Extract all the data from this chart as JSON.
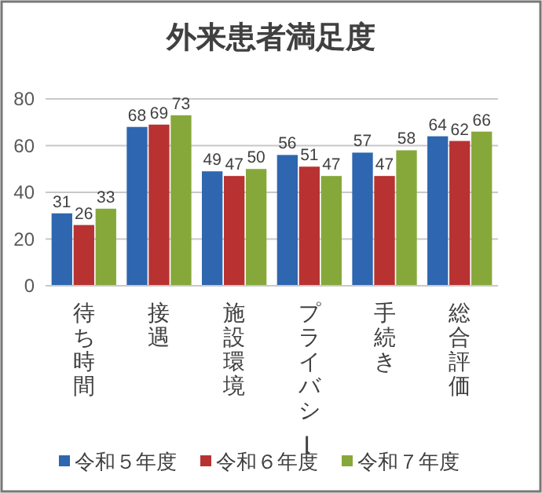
{
  "chart_data": {
    "type": "bar",
    "title": "外来患者満足度",
    "categories": [
      "待ち時間",
      "接遇",
      "施設環境",
      "プライバシー",
      "手続き",
      "総合評価"
    ],
    "series": [
      {
        "name": "令和５年度",
        "color": "#2e66b0",
        "values": [
          31,
          68,
          49,
          56,
          57,
          64
        ]
      },
      {
        "name": "令和６年度",
        "color": "#b83232",
        "values": [
          26,
          69,
          47,
          51,
          47,
          62
        ]
      },
      {
        "name": "令和７年度",
        "color": "#86a83a",
        "values": [
          33,
          73,
          50,
          47,
          58,
          66
        ]
      }
    ],
    "ylim": [
      0,
      80
    ],
    "yticks": [
      0,
      20,
      40,
      60,
      80
    ],
    "grid": "y",
    "legend": "bottom",
    "data_labels": true
  }
}
